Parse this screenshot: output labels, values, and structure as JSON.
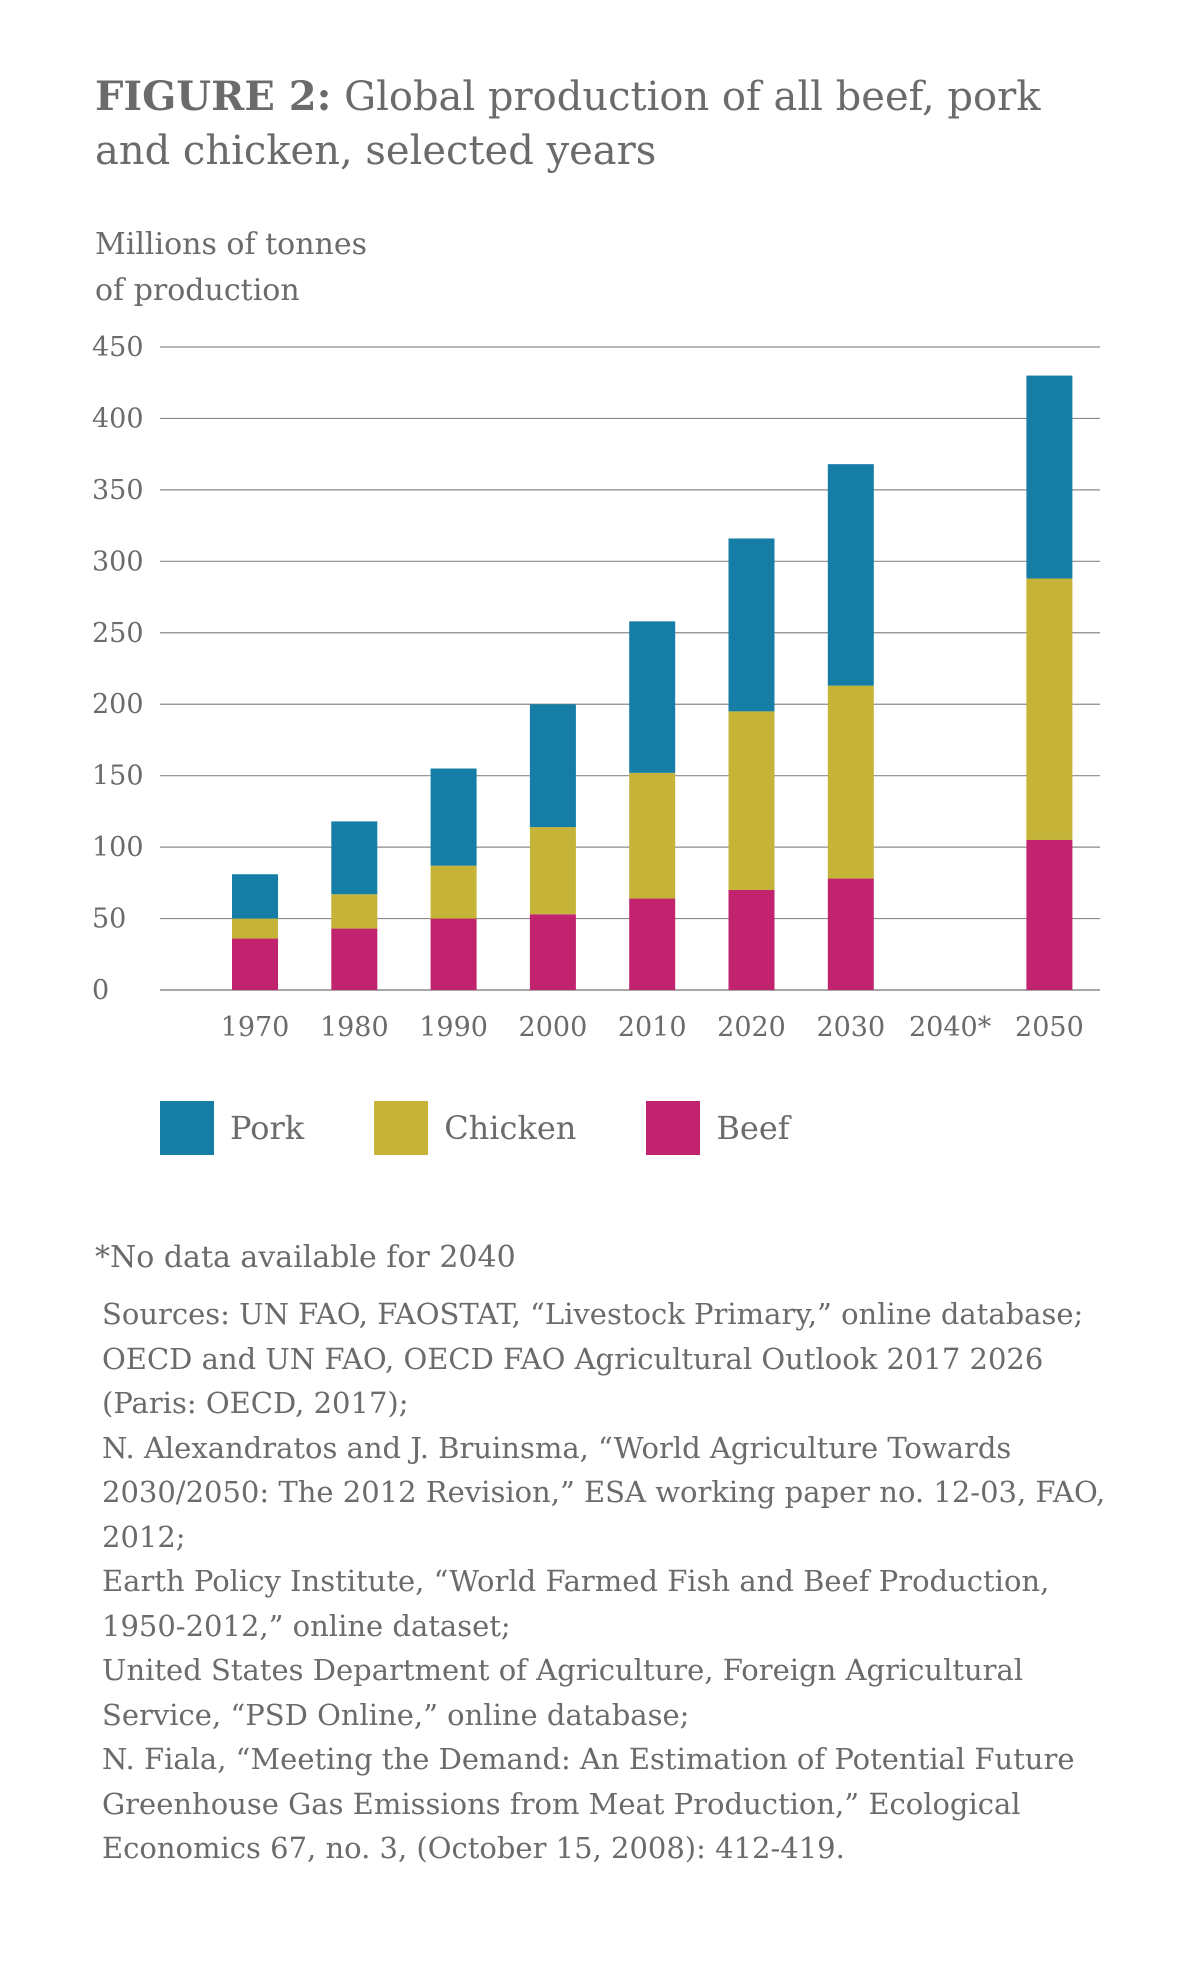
{
  "title": {
    "figure_label": "FIGURE 2:",
    "line1_rest": "Global production of all beef, pork",
    "line2": "and chicken, selected years"
  },
  "chart_data": {
    "type": "bar",
    "stacked": true,
    "ylabel_line1": "Millions of tonnes",
    "ylabel_line2": "of production",
    "ylim": [
      0,
      450
    ],
    "yticks": [
      0,
      50,
      100,
      150,
      200,
      250,
      300,
      350,
      400,
      450
    ],
    "categories": [
      "1970",
      "1980",
      "1990",
      "2000",
      "2010",
      "2020",
      "2030",
      "2040*",
      "2050"
    ],
    "series": [
      {
        "name": "Beef",
        "color": "#c1236f",
        "values": [
          36,
          43,
          50,
          53,
          64,
          70,
          78,
          null,
          105
        ]
      },
      {
        "name": "Chicken",
        "color": "#c5b437",
        "values": [
          14,
          24,
          37,
          61,
          88,
          125,
          135,
          null,
          183
        ]
      },
      {
        "name": "Pork",
        "color": "#167da6",
        "values": [
          31,
          51,
          68,
          86,
          106,
          121,
          155,
          null,
          142
        ]
      }
    ],
    "grid": true,
    "legend_position": "bottom"
  },
  "legend": [
    {
      "label": "Pork",
      "color": "#167da6"
    },
    {
      "label": "Chicken",
      "color": "#c5b437"
    },
    {
      "label": "Beef",
      "color": "#c1236f"
    }
  ],
  "footnote": "*No data available for 2040",
  "sources": [
    "Sources: UN FAO, FAOSTAT, “Livestock Primary,” online database;",
    "OECD and UN FAO, OECD FAO Agricultural Outlook 2017 2026 (Paris: OECD, 2017);",
    "N. Alexandratos and J. Bruinsma, “World Agriculture Towards 2030/2050: The 2012 Revision,” ESA working paper no. 12-03, FAO, 2012;",
    "Earth Policy Institute, “World Farmed Fish and Beef Production, 1950-2012,” online dataset;",
    "United States Department of Agriculture, Foreign Agricultural Service, “PSD Online,” online database;",
    "N. Fiala, “Meeting the Demand: An Estimation of Potential Future Greenhouse Gas Emissions from Meat Production,” Ecological Economics 67, no. 3, (October 15, 2008): 412-419."
  ]
}
